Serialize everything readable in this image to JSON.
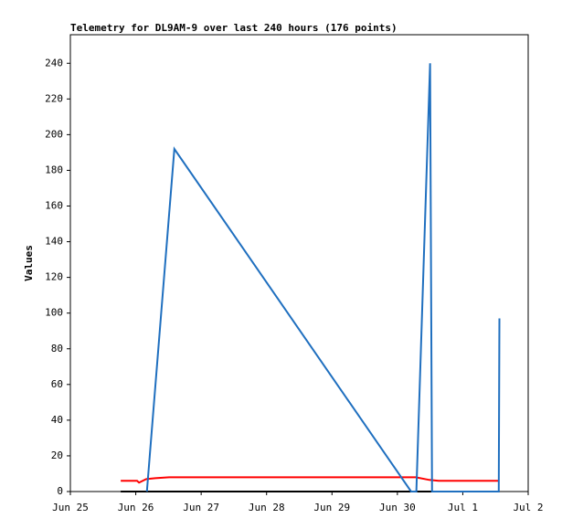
{
  "chart_data": {
    "type": "line",
    "title": "Telemetry for DL9AM-9 over last 240 hours (176 points)",
    "y_label": "Values",
    "xlim": [
      0,
      7
    ],
    "xticks": [
      {
        "value": 0,
        "label": "Jun 25"
      },
      {
        "value": 1,
        "label": "Jun 26"
      },
      {
        "value": 2,
        "label": "Jun 27"
      },
      {
        "value": 3,
        "label": "Jun 28"
      },
      {
        "value": 4,
        "label": "Jun 29"
      },
      {
        "value": 5,
        "label": "Jun 30"
      },
      {
        "value": 6,
        "label": "Jul 1"
      },
      {
        "value": 7,
        "label": "Jul 2"
      }
    ],
    "ylim": [
      0,
      256
    ],
    "yticks": [
      0,
      20,
      40,
      60,
      80,
      100,
      120,
      140,
      160,
      180,
      200,
      220,
      240
    ],
    "series": [
      {
        "color": "#000000",
        "x": [
          0.77,
          6.56
        ],
        "values": [
          0,
          0
        ]
      },
      {
        "color": "#ff0000",
        "x": [
          0.77,
          1.02,
          1.05,
          1.16,
          1.3,
          1.51,
          5.28,
          5.49,
          5.63,
          6.54
        ],
        "values": [
          6,
          6,
          5,
          7,
          7.5,
          8,
          8,
          6.5,
          6,
          6
        ]
      },
      {
        "color": "#1f6fbf",
        "x": [
          1.17,
          1.59,
          5.21,
          5.29,
          5.5,
          5.53,
          6.55,
          6.56
        ],
        "values": [
          0,
          192,
          0,
          0,
          240,
          0,
          0,
          97
        ]
      }
    ]
  }
}
